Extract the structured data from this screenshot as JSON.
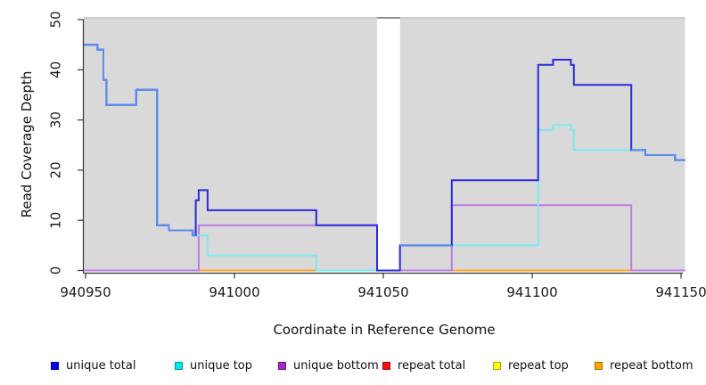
{
  "chart_data": {
    "type": "line",
    "subtype": "step-coverage-plot",
    "title": "",
    "xlabel": "Coordinate in Reference Genome",
    "ylabel": "Read Coverage Depth",
    "xlim": [
      940949.4,
      941151.4
    ],
    "ylim": [
      0,
      50
    ],
    "x_ticks": [
      940950,
      941000,
      941050,
      941100,
      941150
    ],
    "y_ticks": [
      0,
      10,
      20,
      30,
      40,
      50
    ],
    "plot_bg_color": "#d9d9d9",
    "gap_region": {
      "x1": 941047.9,
      "x2": 941055.6
    },
    "series": [
      {
        "name": "unique bottom",
        "color": "#bd7ae3",
        "steps": [
          [
            940949.4,
            0
          ],
          [
            940988,
            9
          ],
          [
            941047.9,
            0
          ],
          [
            941073,
            13
          ],
          [
            941133.3,
            0
          ],
          [
            941151.4,
            0
          ]
        ]
      },
      {
        "name": "unique top",
        "color": "#7de9ef",
        "steps": [
          [
            940949.4,
            45
          ],
          [
            940954,
            44
          ],
          [
            940956,
            38
          ],
          [
            940957,
            33
          ],
          [
            940967,
            36
          ],
          [
            940974,
            9
          ],
          [
            940978,
            8
          ],
          [
            940986,
            7
          ],
          [
            940991,
            3
          ],
          [
            941027.5,
            0
          ],
          [
            941055.6,
            5
          ],
          [
            941102,
            28
          ],
          [
            941107,
            29
          ],
          [
            941113,
            28
          ],
          [
            941114,
            24
          ],
          [
            941138,
            23
          ],
          [
            941148,
            22
          ],
          [
            941151.4,
            22
          ]
        ]
      },
      {
        "name": "unique total",
        "color": "#2a2ae0",
        "light_overlap_color": "#5b8cf0",
        "light_overlap_ranges": [
          [
            940949.4,
            940987
          ],
          [
            941055.6,
            941073
          ],
          [
            941133.3,
            941151.4
          ]
        ],
        "steps": [
          [
            940949.4,
            45
          ],
          [
            940954,
            44
          ],
          [
            940956,
            38
          ],
          [
            940957,
            33
          ],
          [
            940967,
            36
          ],
          [
            940974,
            9
          ],
          [
            940978,
            8
          ],
          [
            940986,
            7
          ],
          [
            940987,
            14
          ],
          [
            940988,
            16
          ],
          [
            940991,
            12
          ],
          [
            941027.5,
            9
          ],
          [
            941047.9,
            0
          ],
          [
            941055.6,
            5
          ],
          [
            941073,
            18
          ],
          [
            941102,
            41
          ],
          [
            941107,
            42
          ],
          [
            941113,
            41
          ],
          [
            941114,
            37
          ],
          [
            941133.3,
            24
          ],
          [
            941138,
            23
          ],
          [
            941148,
            22
          ],
          [
            941151.4,
            22
          ]
        ]
      }
    ],
    "baseline_segments": [
      {
        "x1": 940949.4,
        "x2": 940988,
        "color": "#e0688f"
      },
      {
        "x1": 940988,
        "x2": 941027.5,
        "color": "#ffa428"
      },
      {
        "x1": 941027.5,
        "x2": 941047.9,
        "color": "#8fd3a5"
      },
      {
        "x1": 941055.6,
        "x2": 941073,
        "color": "#e0688f"
      },
      {
        "x1": 941073,
        "x2": 941133.3,
        "color": "#ffa428"
      },
      {
        "x1": 941133.3,
        "x2": 941151.4,
        "color": "#e0688f"
      }
    ],
    "legend": [
      {
        "label": "unique total",
        "swatch": "#0000ee"
      },
      {
        "label": "unique top",
        "swatch": "#00e5ee"
      },
      {
        "label": "unique bottom",
        "swatch": "#aa22cc"
      },
      {
        "label": "repeat total",
        "swatch": "#ee1111"
      },
      {
        "label": "repeat top",
        "swatch": "#ffff00"
      },
      {
        "label": "repeat bottom",
        "swatch": "#ffa500"
      }
    ]
  }
}
